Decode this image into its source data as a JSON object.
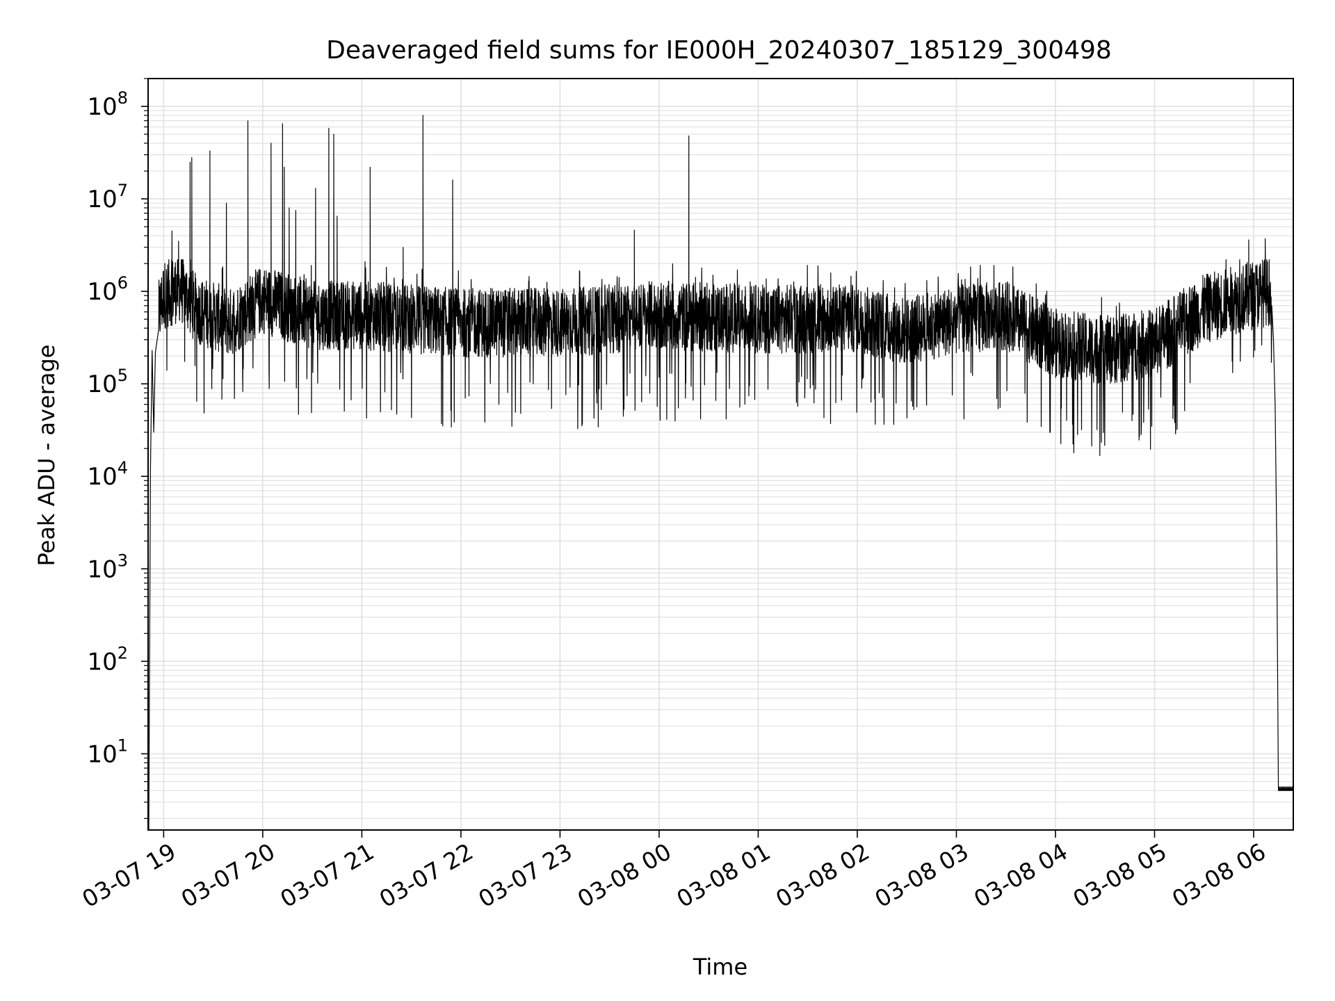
{
  "chart_data": {
    "type": "line",
    "title": "Deaveraged field sums for IE000H_20240307_185129_300498",
    "xlabel": "Time",
    "ylabel": "Peak ADU - average",
    "yscale": "log",
    "ylim": [
      1.5,
      200000000
    ],
    "xlim": [
      "2024-03-07 18:51",
      "2024-03-08 06:24"
    ],
    "grid": true,
    "line_color": "#000000",
    "grid_color": "#e0e0e0",
    "x_ticks": [
      {
        "t": "2024-03-07 19:00",
        "label": "03-07 19"
      },
      {
        "t": "2024-03-07 20:00",
        "label": "03-07 20"
      },
      {
        "t": "2024-03-07 21:00",
        "label": "03-07 21"
      },
      {
        "t": "2024-03-07 22:00",
        "label": "03-07 22"
      },
      {
        "t": "2024-03-07 23:00",
        "label": "03-07 23"
      },
      {
        "t": "2024-03-08 00:00",
        "label": "03-08 00"
      },
      {
        "t": "2024-03-08 01:00",
        "label": "03-08 01"
      },
      {
        "t": "2024-03-08 02:00",
        "label": "03-08 02"
      },
      {
        "t": "2024-03-08 03:00",
        "label": "03-08 03"
      },
      {
        "t": "2024-03-08 04:00",
        "label": "03-08 04"
      },
      {
        "t": "2024-03-08 05:00",
        "label": "03-08 05"
      },
      {
        "t": "2024-03-08 06:00",
        "label": "03-08 06"
      }
    ],
    "y_ticks": [
      {
        "value": 10,
        "base": "10",
        "exp": "1"
      },
      {
        "value": 100,
        "base": "10",
        "exp": "2"
      },
      {
        "value": 1000,
        "base": "10",
        "exp": "3"
      },
      {
        "value": 10000,
        "base": "10",
        "exp": "4"
      },
      {
        "value": 100000,
        "base": "10",
        "exp": "5"
      },
      {
        "value": 1000000,
        "base": "10",
        "exp": "6"
      },
      {
        "value": 10000000,
        "base": "10",
        "exp": "7"
      },
      {
        "value": 100000000,
        "base": "10",
        "exp": "8"
      }
    ],
    "series": [
      {
        "style": "noisy-trace",
        "points": [
          [
            "2024-03-07 18:51",
            1.5
          ],
          [
            "2024-03-07 18:52",
            12000
          ],
          [
            "2024-03-07 18:53",
            230000
          ],
          [
            "2024-03-07 18:54",
            30000
          ],
          [
            "2024-03-07 18:55",
            220000
          ],
          [
            "2024-03-07 18:57",
            600000
          ],
          [
            "2024-03-07 19:00",
            1000000
          ],
          [
            "2024-03-07 19:10",
            1200000
          ],
          [
            "2024-03-07 19:20",
            700000
          ],
          [
            "2024-03-07 19:40",
            500000
          ],
          [
            "2024-03-07 20:00",
            900000
          ],
          [
            "2024-03-07 20:30",
            600000
          ],
          [
            "2024-03-07 21:00",
            600000
          ],
          [
            "2024-03-07 21:30",
            550000
          ],
          [
            "2024-03-07 22:00",
            500000
          ],
          [
            "2024-03-07 23:00",
            500000
          ],
          [
            "2024-03-08 00:00",
            600000
          ],
          [
            "2024-03-08 01:00",
            550000
          ],
          [
            "2024-03-08 02:00",
            550000
          ],
          [
            "2024-03-08 02:30",
            400000
          ],
          [
            "2024-03-08 03:00",
            550000
          ],
          [
            "2024-03-08 03:30",
            600000
          ],
          [
            "2024-03-08 04:00",
            300000
          ],
          [
            "2024-03-08 04:30",
            250000
          ],
          [
            "2024-03-08 05:00",
            300000
          ],
          [
            "2024-03-08 05:30",
            700000
          ],
          [
            "2024-03-08 06:00",
            1000000
          ],
          [
            "2024-03-08 06:10",
            1100000
          ],
          [
            "2024-03-08 06:12",
            300000
          ],
          [
            "2024-03-08 06:13",
            60000
          ],
          [
            "2024-03-08 06:14",
            2000
          ],
          [
            "2024-03-08 06:15",
            4
          ],
          [
            "2024-03-08 06:24",
            4
          ]
        ],
        "spikes": [
          [
            "2024-03-07 19:05",
            4500000
          ],
          [
            "2024-03-07 19:09",
            3500000
          ],
          [
            "2024-03-07 19:16",
            25000000
          ],
          [
            "2024-03-07 19:17",
            28000000
          ],
          [
            "2024-03-07 19:20",
            65000
          ],
          [
            "2024-03-07 19:28",
            33000000
          ],
          [
            "2024-03-07 19:38",
            9000000
          ],
          [
            "2024-03-07 19:51",
            70000000
          ],
          [
            "2024-03-07 20:05",
            40000000
          ],
          [
            "2024-03-07 20:12",
            65000000
          ],
          [
            "2024-03-07 20:13",
            22000000
          ],
          [
            "2024-03-07 20:16",
            8000000
          ],
          [
            "2024-03-07 20:20",
            7500000
          ],
          [
            "2024-03-07 20:32",
            13000000
          ],
          [
            "2024-03-07 20:40",
            58000000
          ],
          [
            "2024-03-07 20:43",
            50000000
          ],
          [
            "2024-03-07 20:45",
            6500000
          ],
          [
            "2024-03-07 21:05",
            22000000
          ],
          [
            "2024-03-07 21:25",
            3000000
          ],
          [
            "2024-03-07 21:37",
            80000000
          ],
          [
            "2024-03-07 21:55",
            16000000
          ],
          [
            "2024-03-07 22:23",
            60000
          ],
          [
            "2024-03-07 23:45",
            4600000
          ],
          [
            "2024-03-08 00:18",
            48000000
          ],
          [
            "2024-03-08 05:57",
            3600000
          ],
          [
            "2024-03-08 06:07",
            3700000
          ]
        ]
      }
    ]
  }
}
